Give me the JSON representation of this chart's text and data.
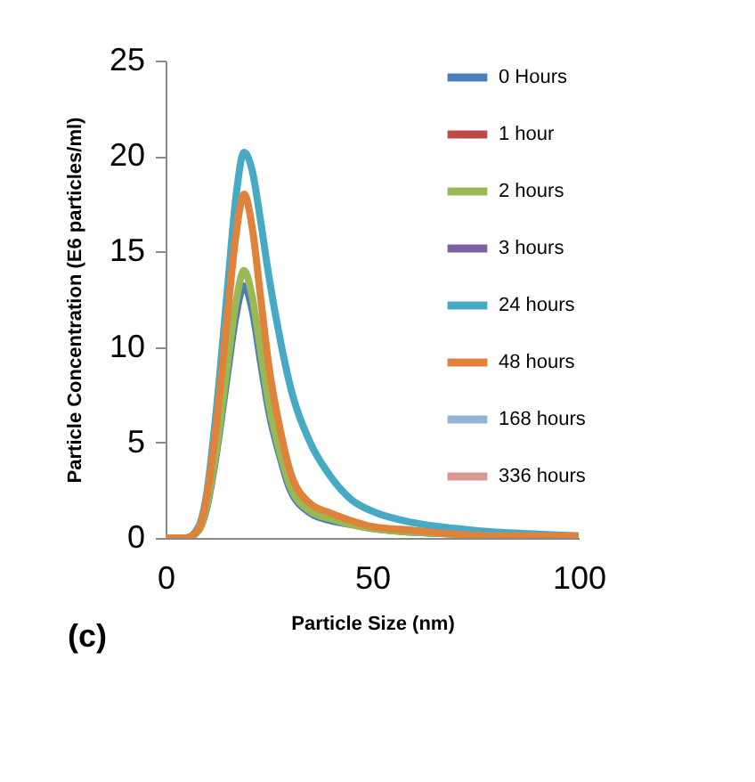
{
  "chart_data": {
    "type": "line",
    "xlabel": "Particle Size (nm)",
    "ylabel": "Particle Concentration (E6 particles/ml)",
    "x": [
      0,
      5,
      8,
      10,
      12,
      15,
      17,
      19,
      21,
      23,
      25,
      28,
      30,
      35,
      40,
      45,
      50,
      60,
      70,
      80,
      90,
      100
    ],
    "xlim": [
      0,
      100
    ],
    "xticks": [
      0,
      50,
      100
    ],
    "ylim": [
      0,
      25
    ],
    "yticks": [
      0,
      5,
      10,
      15,
      20,
      25
    ],
    "grid": false,
    "legend": "top right",
    "marker": "none",
    "line_style": "solid",
    "annotations": [
      "(c)"
    ],
    "series": [
      {
        "name": "0 Hours",
        "color": "#4a7ebb",
        "values": [
          0,
          0,
          0.4,
          1.6,
          4,
          8.6,
          11.6,
          13.2,
          11.9,
          9.2,
          6.6,
          4,
          2.6,
          1.3,
          0.9,
          0.7,
          0.5,
          0.3,
          0.2,
          0.1,
          0.1,
          0
        ]
      },
      {
        "name": "1 hour",
        "color": "#be4b48",
        "values": [
          null,
          null,
          null,
          null,
          null,
          null,
          null,
          null,
          null,
          null,
          null,
          null,
          null,
          null,
          null,
          null,
          null,
          null,
          null,
          null,
          null,
          null
        ]
      },
      {
        "name": "2 hours",
        "color": "#98b954",
        "values": [
          0,
          0,
          0.4,
          1.7,
          4.2,
          9.1,
          12.3,
          14,
          12.6,
          9.8,
          7,
          4.2,
          2.8,
          1.4,
          1,
          0.7,
          0.5,
          0.3,
          0.2,
          0.1,
          0.1,
          0
        ]
      },
      {
        "name": "3 hours",
        "color": "#7d60a0",
        "values": [
          null,
          null,
          null,
          null,
          null,
          null,
          null,
          null,
          null,
          null,
          null,
          null,
          null,
          null,
          null,
          null,
          null,
          null,
          null,
          null,
          null,
          null
        ]
      },
      {
        "name": "24 hours",
        "color": "#46aac5",
        "values": [
          0,
          0,
          0.6,
          2.4,
          6.1,
          13.1,
          17.8,
          20.2,
          19.2,
          16.6,
          13.7,
          10.1,
          8.1,
          5,
          3.2,
          2,
          1.4,
          0.8,
          0.5,
          0.3,
          0.2,
          0.1
        ]
      },
      {
        "name": "48 hours",
        "color": "#e0823a",
        "values": [
          0,
          0,
          0.5,
          2.2,
          5.4,
          11.7,
          15.8,
          18,
          16.2,
          12.6,
          9,
          5.4,
          3.6,
          1.8,
          1.3,
          0.9,
          0.6,
          0.4,
          0.2,
          0.1,
          0.1,
          0.1
        ]
      },
      {
        "name": "168 hours",
        "color": "#95b3d7",
        "values": [
          null,
          null,
          null,
          null,
          null,
          null,
          null,
          null,
          null,
          null,
          null,
          null,
          null,
          null,
          null,
          null,
          null,
          null,
          null,
          null,
          null,
          null
        ]
      },
      {
        "name": "336 hours",
        "color": "#d99694",
        "values": [
          null,
          null,
          null,
          null,
          null,
          null,
          null,
          null,
          null,
          null,
          null,
          null,
          null,
          null,
          null,
          null,
          null,
          null,
          null,
          null,
          null,
          null
        ]
      }
    ]
  }
}
